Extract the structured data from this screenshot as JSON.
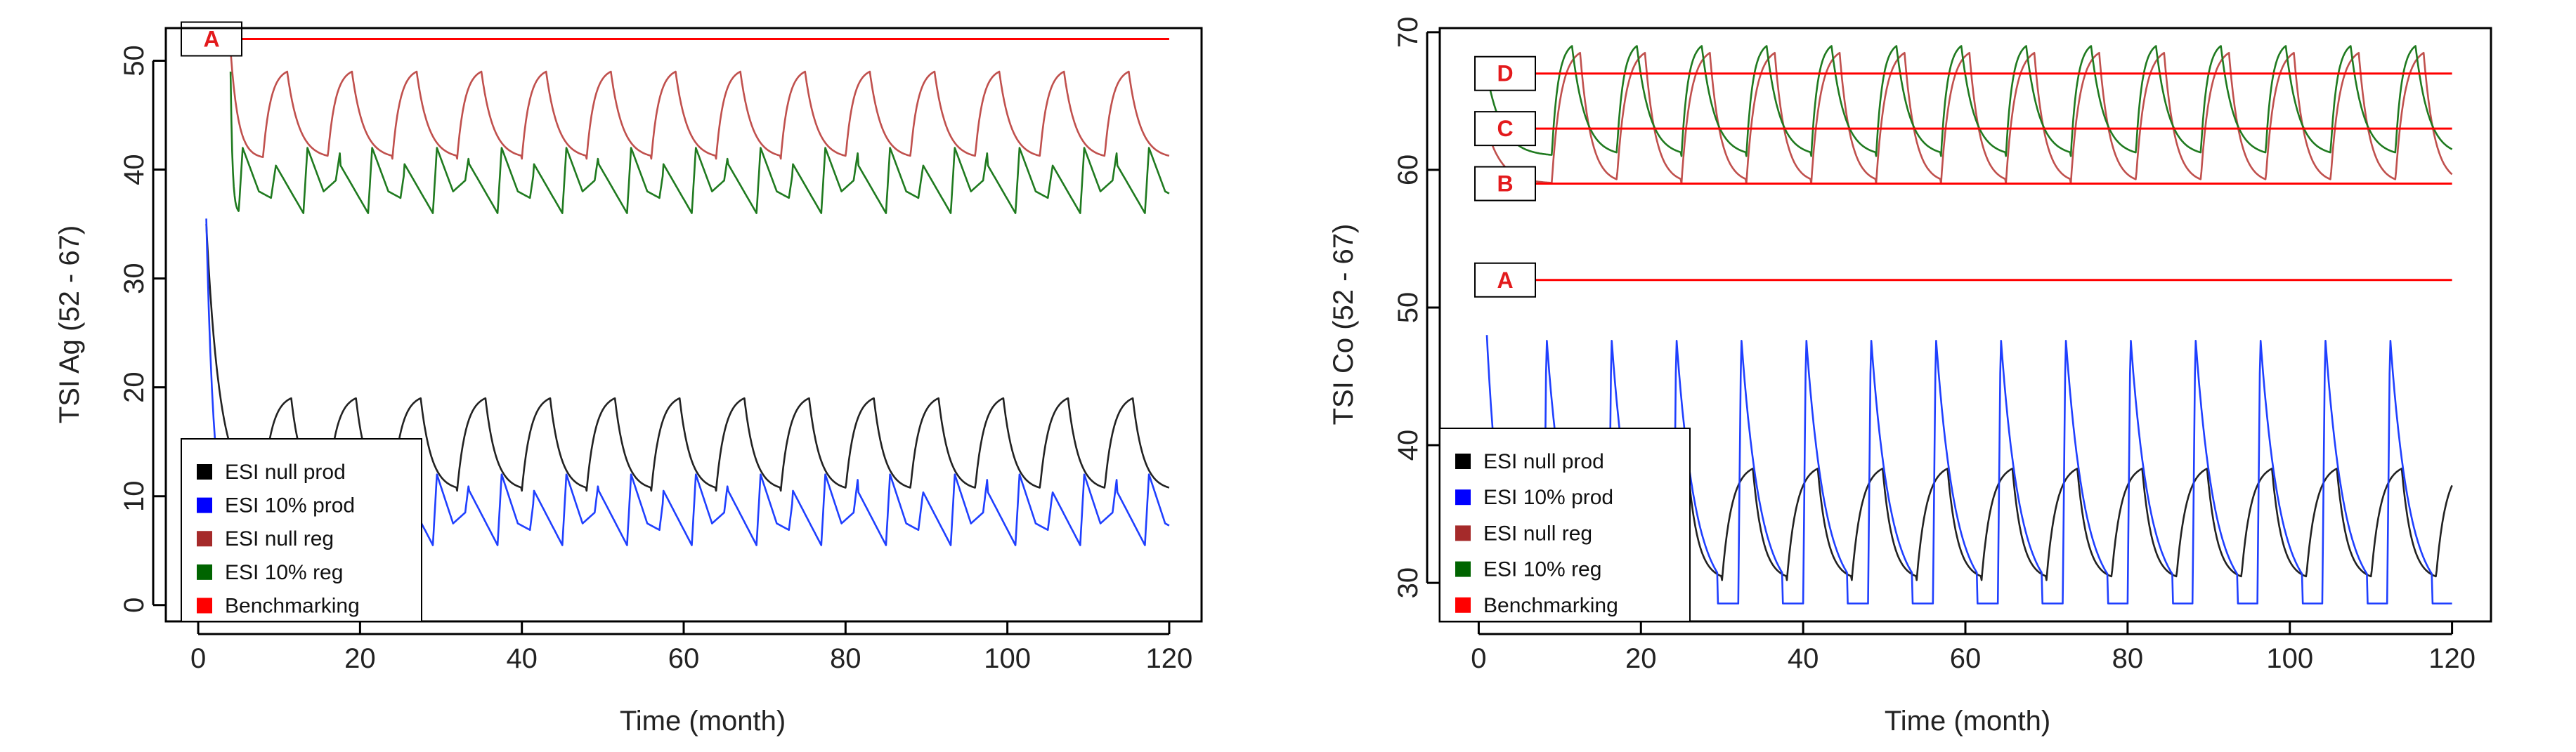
{
  "chart_data": [
    {
      "type": "line",
      "xlabel": "Time (month)",
      "ylabel": "TSI Ag (52 - 67)",
      "xlim": [
        -4,
        124
      ],
      "ylim": [
        -1.5,
        53
      ],
      "xticks": [
        0,
        20,
        40,
        60,
        80,
        100,
        120
      ],
      "yticks": [
        0,
        10,
        20,
        30,
        40,
        50
      ],
      "legend": {
        "placement": "bottom-left",
        "entries": [
          {
            "label": "ESI null prod",
            "color": "#000000"
          },
          {
            "label": "ESI 10% prod",
            "color": "#0000ff"
          },
          {
            "label": "ESI null reg",
            "color": "#a52a2a"
          },
          {
            "label": "ESI 10% reg",
            "color": "#006400"
          },
          {
            "label": "Benchmarking",
            "color": "#ff0000"
          }
        ]
      },
      "benchmarks": [
        {
          "label": "A",
          "value": 52,
          "x_start": 4,
          "x_end": 120
        }
      ],
      "series": [
        {
          "name": "ESI null reg",
          "color": "#c0504d",
          "shape": "smooth",
          "start_x": 4,
          "start_y": 51,
          "period": 8,
          "phase": 8,
          "high": 49,
          "low": 41,
          "rise": 3
        },
        {
          "name": "ESI 10% reg",
          "color": "#1f7a1f",
          "shape": "sawtooth",
          "start_x": 4,
          "start_y": 49,
          "period": 8,
          "phase": 5,
          "high": 42,
          "low": 36,
          "mid": 38
        },
        {
          "name": "ESI null prod",
          "color": "#222222",
          "shape": "smooth",
          "start_x": 1,
          "start_y": 35,
          "period": 8,
          "phase": 8,
          "high": 19,
          "low": 10.5,
          "rise": 3.5
        },
        {
          "name": "ESI 10% prod",
          "color": "#1f3fff",
          "shape": "sawtooth",
          "start_x": 1,
          "start_y": 35.5,
          "period": 8,
          "phase": 5,
          "high": 12,
          "low": 5.5,
          "mid": 7.5
        }
      ]
    },
    {
      "type": "line",
      "xlabel": "Time (month)",
      "ylabel": "TSI Co (52 - 67)",
      "xlim": [
        -4.8,
        124.8
      ],
      "ylim": [
        27.2,
        70.3
      ],
      "xticks": [
        0,
        20,
        40,
        60,
        80,
        100,
        120
      ],
      "yticks": [
        30,
        40,
        50,
        60,
        70
      ],
      "legend": {
        "placement": "bottom-left",
        "entries": [
          {
            "label": "ESI null prod",
            "color": "#000000"
          },
          {
            "label": "ESI 10% prod",
            "color": "#0000ff"
          },
          {
            "label": "ESI null reg",
            "color": "#a52a2a"
          },
          {
            "label": "ESI 10% reg",
            "color": "#006400"
          },
          {
            "label": "Benchmarking",
            "color": "#ff0000"
          }
        ]
      },
      "benchmarks": [
        {
          "label": "A",
          "value": 52,
          "x_start": 3,
          "x_end": 120
        },
        {
          "label": "B",
          "value": 59,
          "x_start": 3,
          "x_end": 120
        },
        {
          "label": "C",
          "value": 63,
          "x_start": 3,
          "x_end": 120
        },
        {
          "label": "D",
          "value": 67,
          "x_start": 3,
          "x_end": 120
        }
      ],
      "series": [
        {
          "name": "ESI null reg",
          "color": "#c0504d",
          "shape": "smooth",
          "start_x": 1,
          "start_y": 63,
          "period": 8,
          "phase": 9,
          "high": 68.5,
          "low": 59,
          "rise": 3.5
        },
        {
          "name": "ESI 10% reg",
          "color": "#1f7a1f",
          "shape": "smooth",
          "start_x": 1,
          "start_y": 67,
          "period": 8,
          "phase": 9,
          "high": 69,
          "low": 61,
          "rise": 2.5
        },
        {
          "name": "ESI null prod",
          "color": "#222222",
          "shape": "smooth",
          "start_x": 22,
          "start_y": 31,
          "period": 8,
          "phase": 6,
          "high": 38.3,
          "low": 30.2,
          "rise": 3.8
        },
        {
          "name": "ESI 10% prod",
          "color": "#1f3fff",
          "shape": "spike",
          "start_x": 1,
          "start_y": 48,
          "period": 8,
          "phase": 8,
          "high": 48,
          "low": 28.5
        }
      ]
    }
  ]
}
